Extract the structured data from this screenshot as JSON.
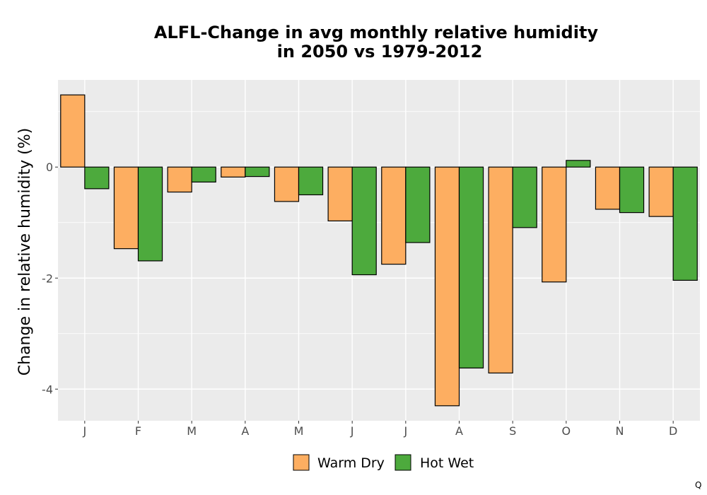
{
  "chart_data": {
    "type": "bar",
    "title": [
      "ALFL-Change in avg monthly relative humidity",
      "in 2050 vs 1979-2012"
    ],
    "xlabel": "",
    "ylabel": "Change in relative humidity (%)",
    "categories": [
      "J",
      "F",
      "M",
      "A",
      "M",
      "J",
      "J",
      "A",
      "S",
      "O",
      "N",
      "D"
    ],
    "series": [
      {
        "name": "Warm Dry",
        "color": "#fdae61",
        "values": [
          1.3,
          -1.47,
          -0.45,
          -0.18,
          -0.62,
          -0.97,
          -1.75,
          -4.3,
          -3.71,
          -2.07,
          -0.76,
          -0.89
        ]
      },
      {
        "name": "Hot Wet",
        "color": "#4daa3d",
        "values": [
          -0.39,
          -1.69,
          -0.27,
          -0.17,
          -0.5,
          -1.94,
          -1.36,
          -3.62,
          -1.09,
          0.12,
          -0.82,
          -2.04
        ]
      }
    ],
    "ylim": [
      -4.57,
      1.57
    ],
    "yticks": [
      0,
      -2,
      -4
    ],
    "ytick_labels": [
      "0",
      "-2",
      "-4"
    ],
    "grid": true,
    "legend_position": "bottom",
    "panel_background": "#ebebeb",
    "grid_color": "#ffffff",
    "bar_outline": "#000000"
  },
  "footnote": "Q"
}
